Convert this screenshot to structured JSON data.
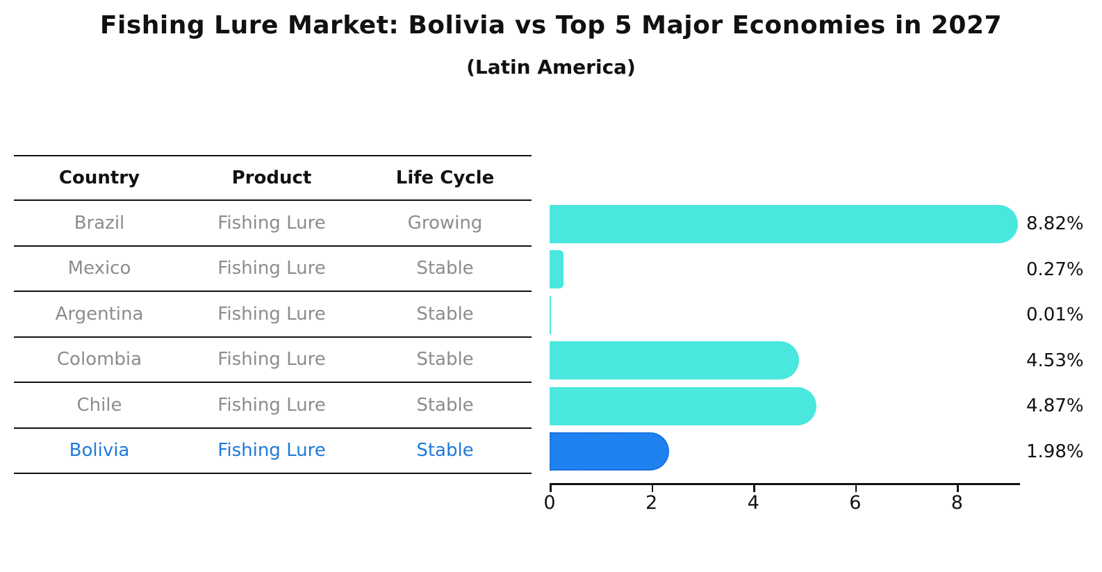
{
  "title": "Fishing Lure Market: Bolivia vs Top 5 Major Economies in 2027",
  "subtitle": "(Latin America)",
  "table": {
    "headers": [
      "Country",
      "Product",
      "Life Cycle"
    ],
    "rows": [
      {
        "country": "Brazil",
        "product": "Fishing Lure",
        "life_cycle": "Growing",
        "highlight": false
      },
      {
        "country": "Mexico",
        "product": "Fishing Lure",
        "life_cycle": "Stable",
        "highlight": false
      },
      {
        "country": "Argentina",
        "product": "Fishing Lure",
        "life_cycle": "Stable",
        "highlight": false
      },
      {
        "country": "Colombia",
        "product": "Fishing Lure",
        "life_cycle": "Stable",
        "highlight": false
      },
      {
        "country": "Chile",
        "product": "Fishing Lure",
        "life_cycle": "Stable",
        "highlight": false
      },
      {
        "country": "Bolivia",
        "product": "Fishing Lure",
        "life_cycle": "Stable",
        "highlight": true
      }
    ]
  },
  "chart_data": {
    "type": "bar",
    "orientation": "horizontal",
    "title": "Fishing Lure Market: Bolivia vs Top 5 Major Economies in 2027",
    "subtitle": "(Latin America)",
    "categories": [
      "Brazil",
      "Mexico",
      "Argentina",
      "Colombia",
      "Chile",
      "Bolivia"
    ],
    "values": [
      8.82,
      0.27,
      0.01,
      4.53,
      4.87,
      1.98
    ],
    "value_labels": [
      "8.82%",
      "0.27%",
      "0.01%",
      "4.53%",
      "4.87%",
      "1.98%"
    ],
    "highlight_index": 5,
    "xlim": [
      0,
      9.2
    ],
    "xticks": [
      0,
      2,
      4,
      6,
      8
    ],
    "grid": false,
    "legend": null,
    "bar_color": "#4AE7DE",
    "highlight_bar_color": "#1E82F0"
  },
  "colors": {
    "background": "#ffffff",
    "bar": "#4AE7DE",
    "highlight_bar": "#1E82F0",
    "highlight_border": "#1566CE",
    "highlight_text": "#1F7AD9",
    "table_text": "#8C8C8C",
    "header_text": "#111111",
    "line": "#111111"
  }
}
